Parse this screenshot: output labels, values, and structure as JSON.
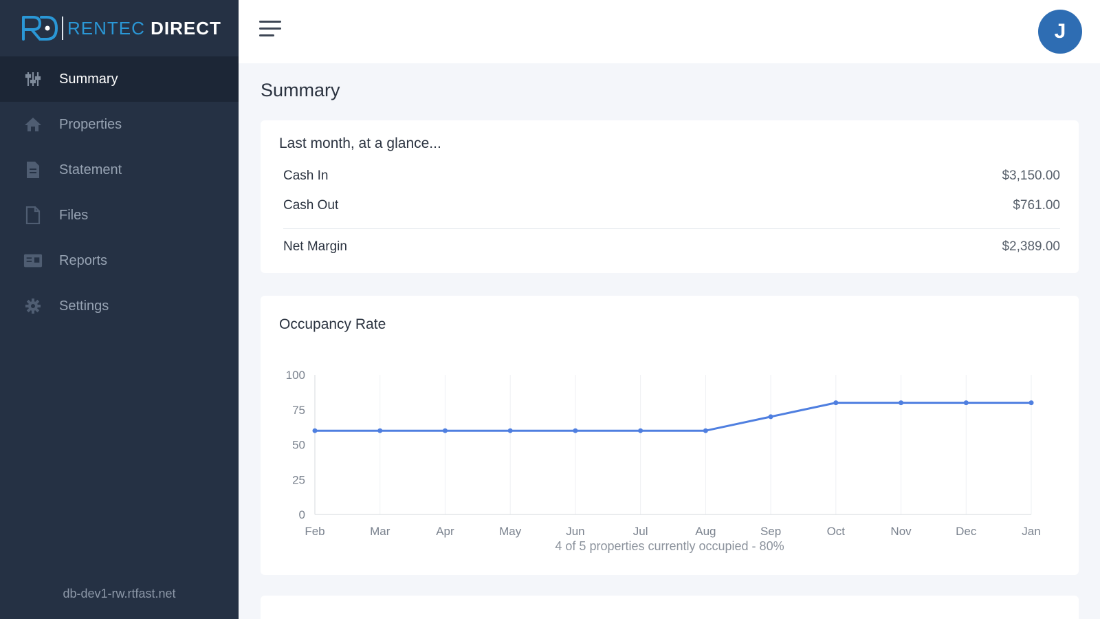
{
  "brand": {
    "part1": "RENTEC",
    "part2": "DIRECT",
    "mark": "RD"
  },
  "sidebar": {
    "items": [
      {
        "label": "Summary",
        "icon": "sliders-icon",
        "active": true
      },
      {
        "label": "Properties",
        "icon": "home-icon",
        "active": false
      },
      {
        "label": "Statement",
        "icon": "document-icon",
        "active": false
      },
      {
        "label": "Files",
        "icon": "file-icon",
        "active": false
      },
      {
        "label": "Reports",
        "icon": "reports-icon",
        "active": false
      },
      {
        "label": "Settings",
        "icon": "gear-icon",
        "active": false
      }
    ],
    "host": "db-dev1-rw.rtfast.net"
  },
  "header": {
    "avatar_initial": "J"
  },
  "page": {
    "title": "Summary"
  },
  "glance": {
    "title": "Last month, at a glance...",
    "rows": [
      {
        "label": "Cash In",
        "value": "$3,150.00"
      },
      {
        "label": "Cash Out",
        "value": "$761.00"
      },
      {
        "label": "Net Margin",
        "value": "$2,389.00"
      }
    ]
  },
  "occupancy": {
    "title": "Occupancy Rate",
    "caption": "4 of 5 properties currently occupied - 80%"
  },
  "colors": {
    "sidebar": "#253144",
    "accent": "#4f7fe0",
    "avatar": "#2e6db3",
    "brand_blue": "#2a97d6"
  },
  "chart_data": {
    "type": "line",
    "categories": [
      "Feb",
      "Mar",
      "Apr",
      "May",
      "Jun",
      "Jul",
      "Aug",
      "Sep",
      "Oct",
      "Nov",
      "Dec",
      "Jan"
    ],
    "series": [
      {
        "values": [
          60,
          60,
          60,
          60,
          60,
          60,
          60,
          70,
          80,
          80,
          80,
          80
        ]
      }
    ],
    "yticks": [
      "0",
      "25",
      "50",
      "75",
      "100"
    ],
    "ylim": [
      0,
      100
    ],
    "grid": "vertical",
    "legend": "none",
    "title": "Occupancy Rate"
  }
}
